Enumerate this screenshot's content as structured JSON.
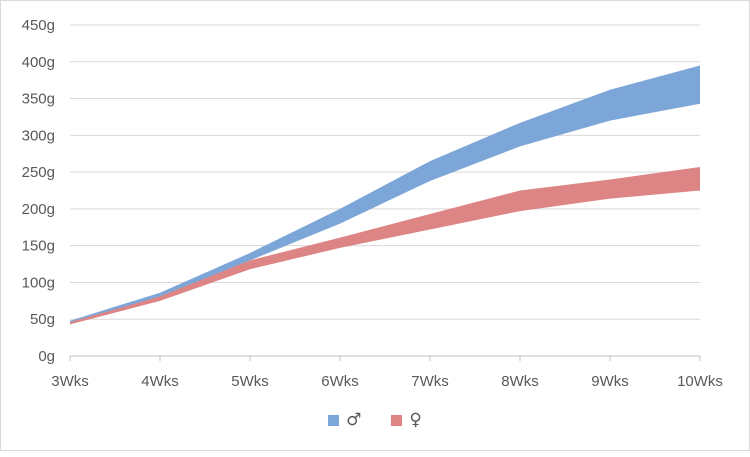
{
  "chart_data": {
    "type": "area",
    "subtype": "range-band",
    "title": "",
    "xlabel": "",
    "ylabel": "",
    "categories": [
      "3Wks",
      "4Wks",
      "5Wks",
      "6Wks",
      "7Wks",
      "8Wks",
      "9Wks",
      "10Wks"
    ],
    "y_ticks": [
      "0g",
      "50g",
      "100g",
      "150g",
      "200g",
      "250g",
      "300g",
      "350g",
      "400g",
      "450g"
    ],
    "ylim": [
      0,
      450
    ],
    "y_unit": "g",
    "grid": true,
    "legend_position": "bottom",
    "series": [
      {
        "name": "♂",
        "color": "#7da6d8",
        "low": [
          45,
          80,
          130,
          180,
          238,
          285,
          320,
          343
        ],
        "high": [
          48,
          86,
          140,
          200,
          265,
          317,
          362,
          395
        ]
      },
      {
        "name": "♀",
        "color": "#dd8585",
        "low": [
          43,
          75,
          118,
          147,
          172,
          197,
          214,
          225
        ],
        "high": [
          46,
          81,
          130,
          161,
          193,
          225,
          240,
          257
        ]
      }
    ]
  }
}
